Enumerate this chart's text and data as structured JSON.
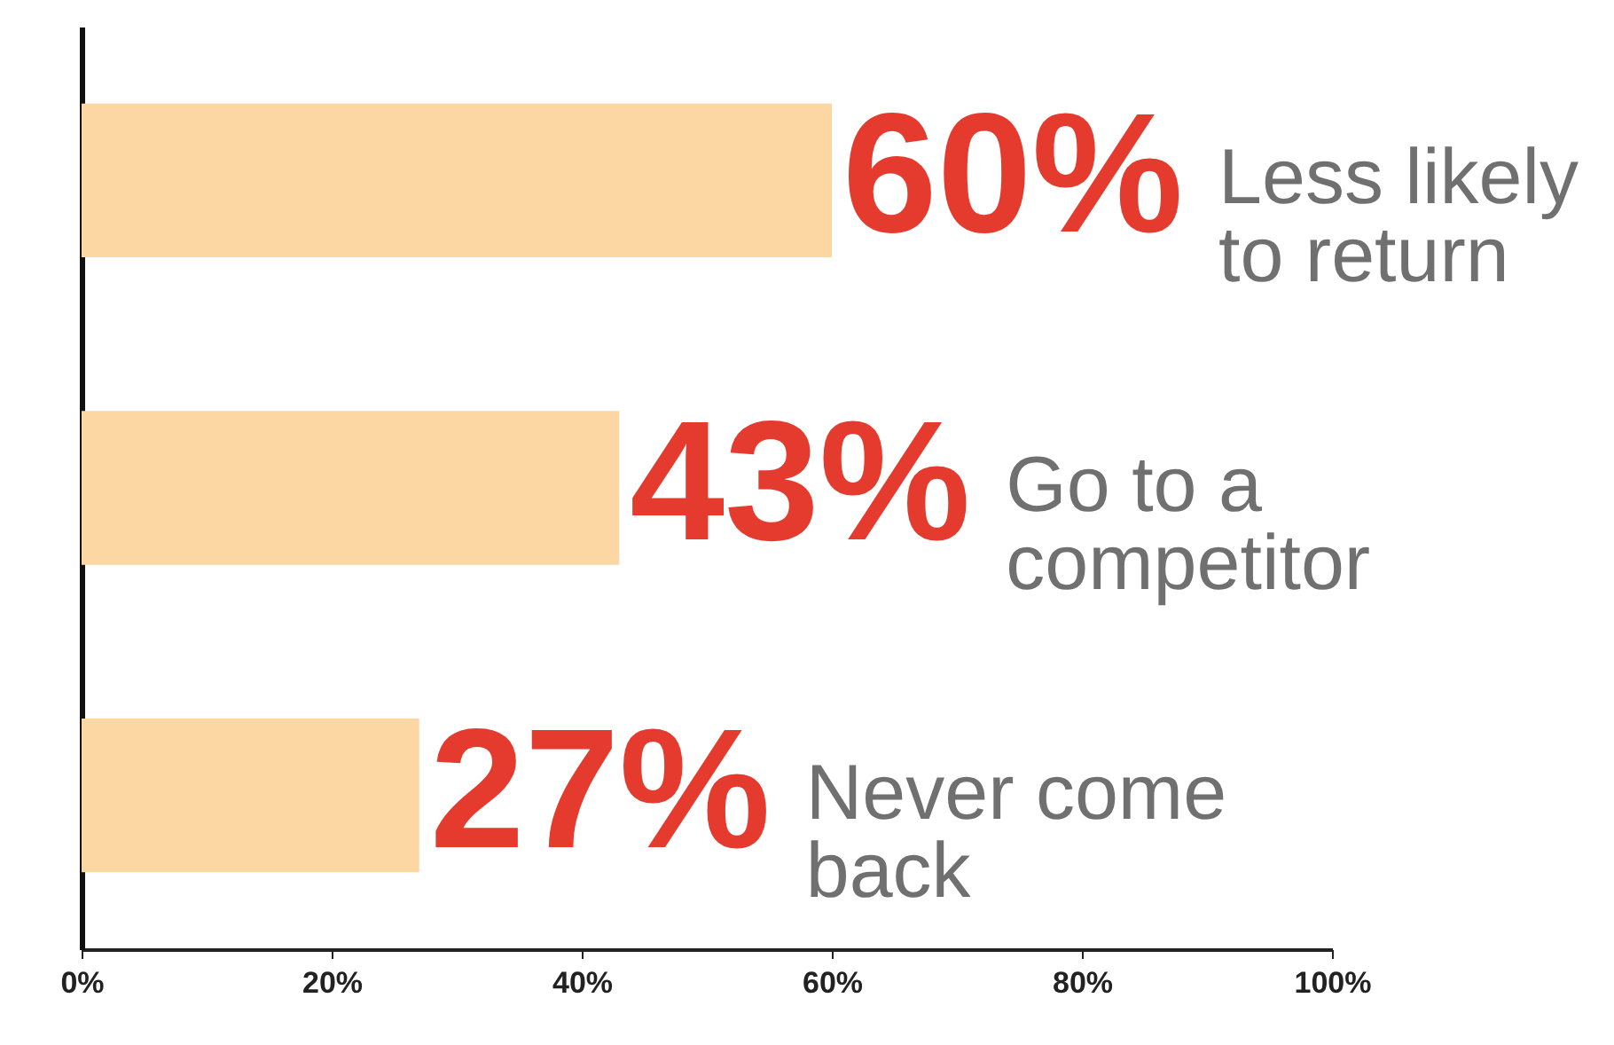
{
  "chart_data": {
    "type": "bar",
    "orientation": "horizontal",
    "categories": [
      "Less likely\nto return",
      "Go to a\ncompetitor",
      "Never come\nback"
    ],
    "values": [
      60,
      43,
      27
    ],
    "color": "#fcd7a3",
    "value_labels": [
      "60%",
      "43%",
      "27%"
    ],
    "xlim": [
      0,
      100
    ],
    "xticks": [
      {
        "value": 0,
        "label": "0%"
      },
      {
        "value": 20,
        "label": "20%"
      },
      {
        "value": 40,
        "label": "40%"
      },
      {
        "value": 60,
        "label": "60%"
      },
      {
        "value": 80,
        "label": "80%"
      },
      {
        "value": 100,
        "label": "100%"
      }
    ],
    "tick_labels": "x",
    "grid": false
  }
}
